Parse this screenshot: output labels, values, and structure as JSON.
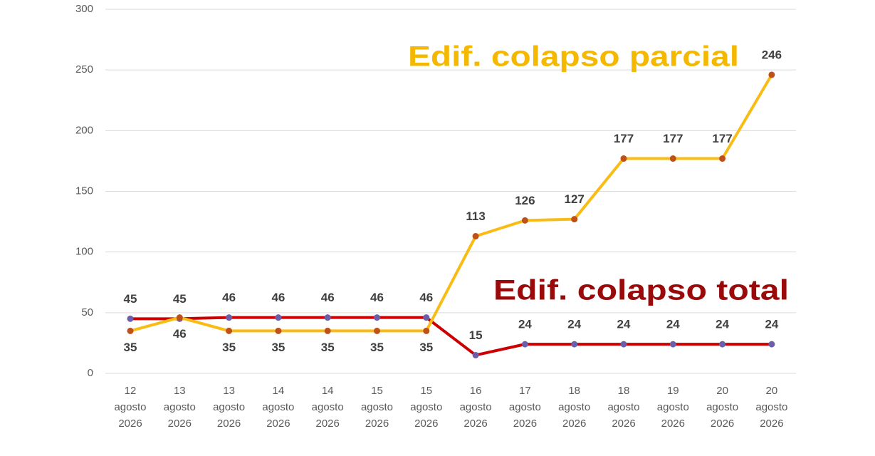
{
  "chart_data": {
    "type": "line",
    "categories": [
      "12 agosto 2026",
      "13 agosto 2026",
      "13 agosto 2026",
      "14 agosto 2026",
      "14 agosto 2026",
      "15 agosto 2026",
      "15 agosto 2026",
      "16 agosto 2026",
      "17 agosto 2026",
      "18 agosto 2026",
      "18 agosto 2026",
      "19 agosto 2026",
      "20 agosto 2026",
      "20 agosto 2026"
    ],
    "series": [
      {
        "name": "Edif. colapso total",
        "color": "#cc0000",
        "label_color": "#9a0a0a",
        "marker_color": "#6a5fa8",
        "values": [
          45,
          45,
          46,
          46,
          46,
          46,
          46,
          15,
          24,
          24,
          24,
          24,
          24,
          24
        ]
      },
      {
        "name": "Edif. colapso parcial",
        "color": "#f9bc15",
        "label_color": "#f5b800",
        "marker_color": "#c0501a",
        "values": [
          35,
          46,
          35,
          35,
          35,
          35,
          35,
          113,
          126,
          127,
          177,
          177,
          177,
          246
        ]
      }
    ],
    "ylim": [
      0,
      300
    ],
    "yticks": [
      0,
      50,
      100,
      150,
      200,
      250,
      300
    ],
    "grid": true
  }
}
